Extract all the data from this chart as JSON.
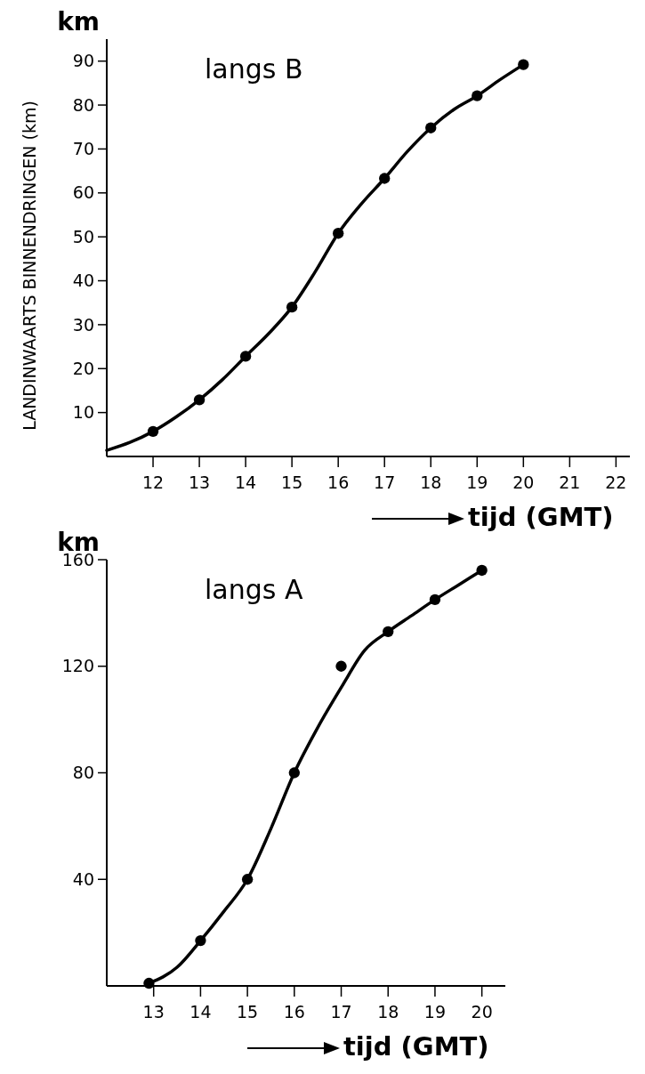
{
  "chart_data": [
    {
      "type": "line",
      "title": "langs B",
      "xlabel": "tijd (GMT)",
      "ylabel": "LANDINWAARTS BINNENDRINGEN (km)",
      "annotations": [
        "km"
      ],
      "xlim": [
        11,
        22.3
      ],
      "xticks": [
        12,
        13,
        14,
        15,
        16,
        17,
        18,
        19,
        20,
        21,
        22
      ],
      "ylim": [
        0,
        95
      ],
      "yticks": [
        10,
        20,
        30,
        40,
        50,
        60,
        70,
        80,
        90
      ],
      "series": [
        {
          "color": "#000000",
          "x": [
            11,
            11.5,
            12,
            12.5,
            13,
            13.5,
            14,
            14.5,
            15,
            15.5,
            16,
            16.5,
            17,
            17.5,
            18,
            18.5,
            19,
            19.5,
            20
          ],
          "values": [
            1.4,
            3.2,
            5.7,
            9,
            12.9,
            17.5,
            22.8,
            28,
            34,
            42,
            50.8,
            57.5,
            63.3,
            69.5,
            74.8,
            79,
            82.1,
            85.8,
            89.2
          ]
        },
        {
          "type": "scatter",
          "marker": "circle",
          "color": "#000000",
          "x": [
            12,
            13,
            14,
            15,
            16,
            17,
            18,
            19,
            20
          ],
          "values": [
            5.7,
            12.9,
            22.8,
            34,
            50.8,
            63.3,
            74.8,
            82.1,
            89.2
          ]
        }
      ]
    },
    {
      "type": "line",
      "title": "langs A",
      "xlabel": "tijd (GMT)",
      "annotations": [
        "km"
      ],
      "xlim": [
        12,
        20.5
      ],
      "xticks": [
        13,
        14,
        15,
        16,
        17,
        18,
        19,
        20
      ],
      "ylim": [
        0,
        160
      ],
      "yticks": [
        40,
        80,
        120,
        160
      ],
      "series": [
        {
          "color": "#000000",
          "x": [
            12.9,
            13.5,
            14,
            14.5,
            15,
            15.5,
            16,
            16.5,
            17,
            17.5,
            18,
            18.5,
            19,
            19.5,
            20
          ],
          "values": [
            1,
            7,
            17,
            28,
            40,
            59,
            80,
            97,
            112,
            126,
            133,
            139,
            145,
            150.5,
            156
          ]
        },
        {
          "type": "scatter",
          "marker": "circle",
          "color": "#000000",
          "x": [
            12.9,
            14,
            15,
            16,
            17,
            18,
            19,
            20
          ],
          "values": [
            1,
            17,
            40,
            80,
            120,
            133,
            145,
            156
          ]
        }
      ]
    }
  ]
}
